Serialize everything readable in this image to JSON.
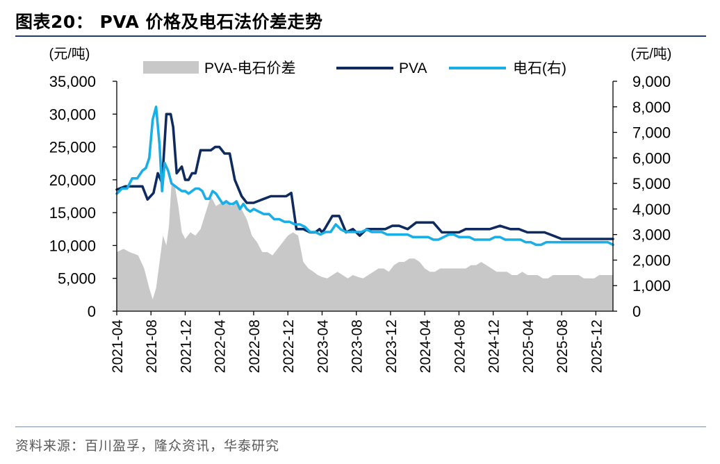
{
  "header": {
    "title": "图表20：  PVA 价格及电石法价差走势"
  },
  "footer": {
    "source": "资料来源：百川盈孚，隆众资讯，华泰研究"
  },
  "colors": {
    "spread": "#c8c8c8",
    "pva": "#0e2a5e",
    "carbide": "#1aaee6",
    "title_rule": "#1f3a6e"
  },
  "chart_data": {
    "type": "line",
    "left_unit": "(元/吨)",
    "right_unit": "(元/吨)",
    "left_axis": {
      "min": 0,
      "max": 35000,
      "ticks": [
        0,
        5000,
        10000,
        15000,
        20000,
        25000,
        30000,
        35000
      ],
      "tick_labels": [
        "0",
        "5,000",
        "10,000",
        "15,000",
        "20,000",
        "25,000",
        "30,000",
        "35,000"
      ]
    },
    "right_axis": {
      "min": 0,
      "max": 9000,
      "ticks": [
        0,
        1000,
        2000,
        3000,
        4000,
        5000,
        6000,
        7000,
        8000,
        9000
      ],
      "tick_labels": [
        "0",
        "1,000",
        "2,000",
        "3,000",
        "4,000",
        "5,000",
        "6,000",
        "7,000",
        "8,000",
        "9,000"
      ]
    },
    "x_range": [
      0,
      58
    ],
    "x_tick_positions": [
      0,
      4,
      8,
      12,
      16,
      20,
      24,
      28,
      32,
      36,
      40,
      44,
      48,
      52,
      56
    ],
    "x_tick_labels": [
      "2021-04",
      "2021-08",
      "2021-12",
      "2022-04",
      "2022-08",
      "2022-12",
      "2023-04",
      "2023-08",
      "2023-12",
      "2024-04",
      "2024-08",
      "2024-12",
      "2025-04",
      "2025-08",
      "2025-12"
    ],
    "legend": [
      "PVA-电石价差",
      "PVA",
      "电石(右)"
    ],
    "series": [
      {
        "name": "PVA-电石价差",
        "style": "area",
        "axis": "left",
        "x": [
          0,
          0.8,
          1.5,
          2.5,
          3.2,
          3.8,
          4.2,
          4.6,
          5.0,
          5.4,
          5.8,
          6.1,
          6.4,
          6.8,
          7.2,
          7.6,
          8.0,
          8.6,
          9.2,
          9.8,
          10.4,
          11.0,
          11.6,
          12.2,
          12.8,
          13.4,
          14.0,
          14.6,
          15.2,
          15.8,
          16.4,
          17.0,
          17.6,
          18.2,
          18.8,
          19.4,
          20.0,
          20.6,
          21.2,
          21.8,
          22.4,
          23.0,
          23.5,
          24.0,
          24.6,
          25.2,
          25.8,
          26.4,
          27.0,
          27.6,
          28.2,
          28.8,
          29.4,
          30.0,
          30.6,
          31.2,
          31.8,
          32.4,
          33.0,
          33.6,
          34.2,
          34.8,
          35.4,
          36.0,
          36.6,
          37.2,
          37.8,
          38.4,
          39.0,
          39.6,
          40.2,
          40.8,
          41.4,
          42.0,
          42.6,
          43.2,
          43.8,
          44.4,
          45.0,
          45.6,
          46.2,
          46.8,
          47.4,
          48.0,
          48.6,
          49.2,
          49.8,
          50.4,
          51.0,
          51.6,
          52.2,
          52.8,
          53.4,
          54.0,
          54.6,
          55.2,
          55.8,
          56.4,
          57.0,
          57.6,
          58.0
        ],
        "values": [
          9000,
          9500,
          9000,
          8500,
          6500,
          3500,
          1800,
          3500,
          7500,
          11500,
          10000,
          13000,
          19500,
          19000,
          16000,
          12000,
          11000,
          12000,
          11500,
          12500,
          15000,
          17500,
          16000,
          16500,
          17000,
          16000,
          17000,
          15500,
          14000,
          11500,
          10500,
          9000,
          9000,
          8500,
          9500,
          10500,
          11500,
          12000,
          11500,
          7500,
          6500,
          6000,
          5500,
          5200,
          5000,
          5500,
          6000,
          5500,
          5000,
          5500,
          5200,
          5000,
          5500,
          6000,
          6500,
          6500,
          6000,
          7000,
          7500,
          7500,
          8000,
          8000,
          7500,
          6500,
          6000,
          6000,
          6500,
          6500,
          6500,
          6500,
          6500,
          6500,
          7000,
          7000,
          7500,
          7000,
          6500,
          6000,
          6000,
          6000,
          5500,
          5500,
          6000,
          5500,
          5500,
          5500,
          5000,
          5000,
          5500,
          5500,
          5500,
          5500,
          5500,
          5500,
          5000,
          5000,
          5000,
          5500,
          5500,
          5500,
          5500
        ]
      },
      {
        "name": "PVA",
        "style": "line",
        "axis": "left",
        "x": [
          0,
          1,
          2,
          3,
          3.6,
          4.3,
          4.8,
          5.3,
          5.8,
          6.3,
          6.6,
          7.0,
          7.6,
          8.0,
          8.4,
          8.8,
          9.2,
          9.8,
          10.4,
          11.0,
          11.5,
          12.0,
          12.6,
          13.2,
          13.8,
          14.6,
          15.2,
          16.0,
          17.0,
          18.0,
          19.0,
          19.8,
          20.4,
          21.0,
          21.8,
          22.6,
          23.2,
          23.7,
          24.0,
          24.3,
          25.2,
          26.0,
          26.8,
          27.6,
          28.4,
          29.2,
          30.0,
          30.8,
          31.4,
          32.2,
          33.0,
          34.0,
          35.0,
          36.0,
          37.0,
          38.0,
          39.0,
          40.0,
          40.8,
          41.6,
          42.4,
          43.6,
          44.8,
          46.0,
          47.0,
          48.0,
          49.0,
          50.0,
          51.0,
          52.0,
          53.0,
          54.0,
          55.0,
          56.0,
          57.0,
          58.0
        ],
        "values": [
          18500,
          19000,
          19000,
          19000,
          17000,
          18000,
          21000,
          19500,
          30000,
          30000,
          28000,
          21000,
          22000,
          20000,
          20000,
          21000,
          21000,
          24500,
          24500,
          24500,
          25000,
          25000,
          24000,
          24000,
          20000,
          17500,
          16500,
          16500,
          17000,
          17500,
          17500,
          17500,
          18000,
          12500,
          12500,
          12000,
          12000,
          12500,
          12000,
          12500,
          14500,
          14500,
          12000,
          12500,
          11500,
          12500,
          12500,
          12500,
          12500,
          13000,
          13000,
          12500,
          13500,
          13500,
          13500,
          12000,
          12000,
          12000,
          12500,
          12500,
          12500,
          12500,
          13000,
          12500,
          12500,
          12000,
          12000,
          12000,
          11500,
          11000,
          11000,
          11000,
          11000,
          11000,
          11000,
          11000
        ]
      },
      {
        "name": "电石(右)",
        "style": "line",
        "axis": "right",
        "x": [
          0,
          0.6,
          1.2,
          1.8,
          2.4,
          3.0,
          3.4,
          3.8,
          4.2,
          4.6,
          5.0,
          5.3,
          5.6,
          6.0,
          6.4,
          6.8,
          7.2,
          7.6,
          8.0,
          8.4,
          8.8,
          9.2,
          9.6,
          10.0,
          10.4,
          10.8,
          11.2,
          11.6,
          12.0,
          12.4,
          12.8,
          13.2,
          13.6,
          14.0,
          14.4,
          14.8,
          15.2,
          15.6,
          16.0,
          16.6,
          17.2,
          17.8,
          18.4,
          19.0,
          19.6,
          20.2,
          20.8,
          21.4,
          22.0,
          22.6,
          23.2,
          23.8,
          24.4,
          25.0,
          25.6,
          26.2,
          26.8,
          27.4,
          28.0,
          28.6,
          29.2,
          29.8,
          30.4,
          31.0,
          31.6,
          32.2,
          32.8,
          33.4,
          34.0,
          34.6,
          35.2,
          35.8,
          36.4,
          37.0,
          37.6,
          38.2,
          38.8,
          39.4,
          40.0,
          40.6,
          41.2,
          41.8,
          42.4,
          43.0,
          43.6,
          44.2,
          44.8,
          45.4,
          46.0,
          46.6,
          47.2,
          47.8,
          48.4,
          49.0,
          49.6,
          50.2,
          50.8,
          51.4,
          52.0,
          52.6,
          53.2,
          53.8,
          54.4,
          55.0,
          55.6,
          56.2,
          56.8,
          57.4,
          58.0
        ],
        "values": [
          4600,
          4800,
          4800,
          5200,
          5200,
          5500,
          5600,
          6000,
          7500,
          8000,
          6500,
          4700,
          5800,
          5500,
          5000,
          4900,
          4800,
          4700,
          4700,
          4600,
          4700,
          4800,
          4800,
          4700,
          4400,
          4400,
          4700,
          4600,
          4400,
          4200,
          4300,
          4200,
          4200,
          4300,
          4000,
          4200,
          4000,
          3900,
          4000,
          3900,
          3800,
          3800,
          3600,
          3600,
          3500,
          3500,
          3400,
          3400,
          3300,
          3100,
          3100,
          3000,
          3100,
          3100,
          3400,
          3200,
          3100,
          3100,
          3100,
          3100,
          3200,
          3100,
          3100,
          3100,
          3000,
          3000,
          3000,
          3000,
          3000,
          2900,
          2900,
          2900,
          2900,
          2800,
          2800,
          2900,
          3000,
          3000,
          2900,
          2900,
          2900,
          2800,
          2800,
          2800,
          2800,
          2900,
          2900,
          2800,
          2800,
          2800,
          2800,
          2700,
          2700,
          2600,
          2600,
          2700,
          2700,
          2700,
          2700,
          2700,
          2700,
          2700,
          2700,
          2700,
          2700,
          2700,
          2700,
          2700,
          2600
        ]
      }
    ]
  }
}
